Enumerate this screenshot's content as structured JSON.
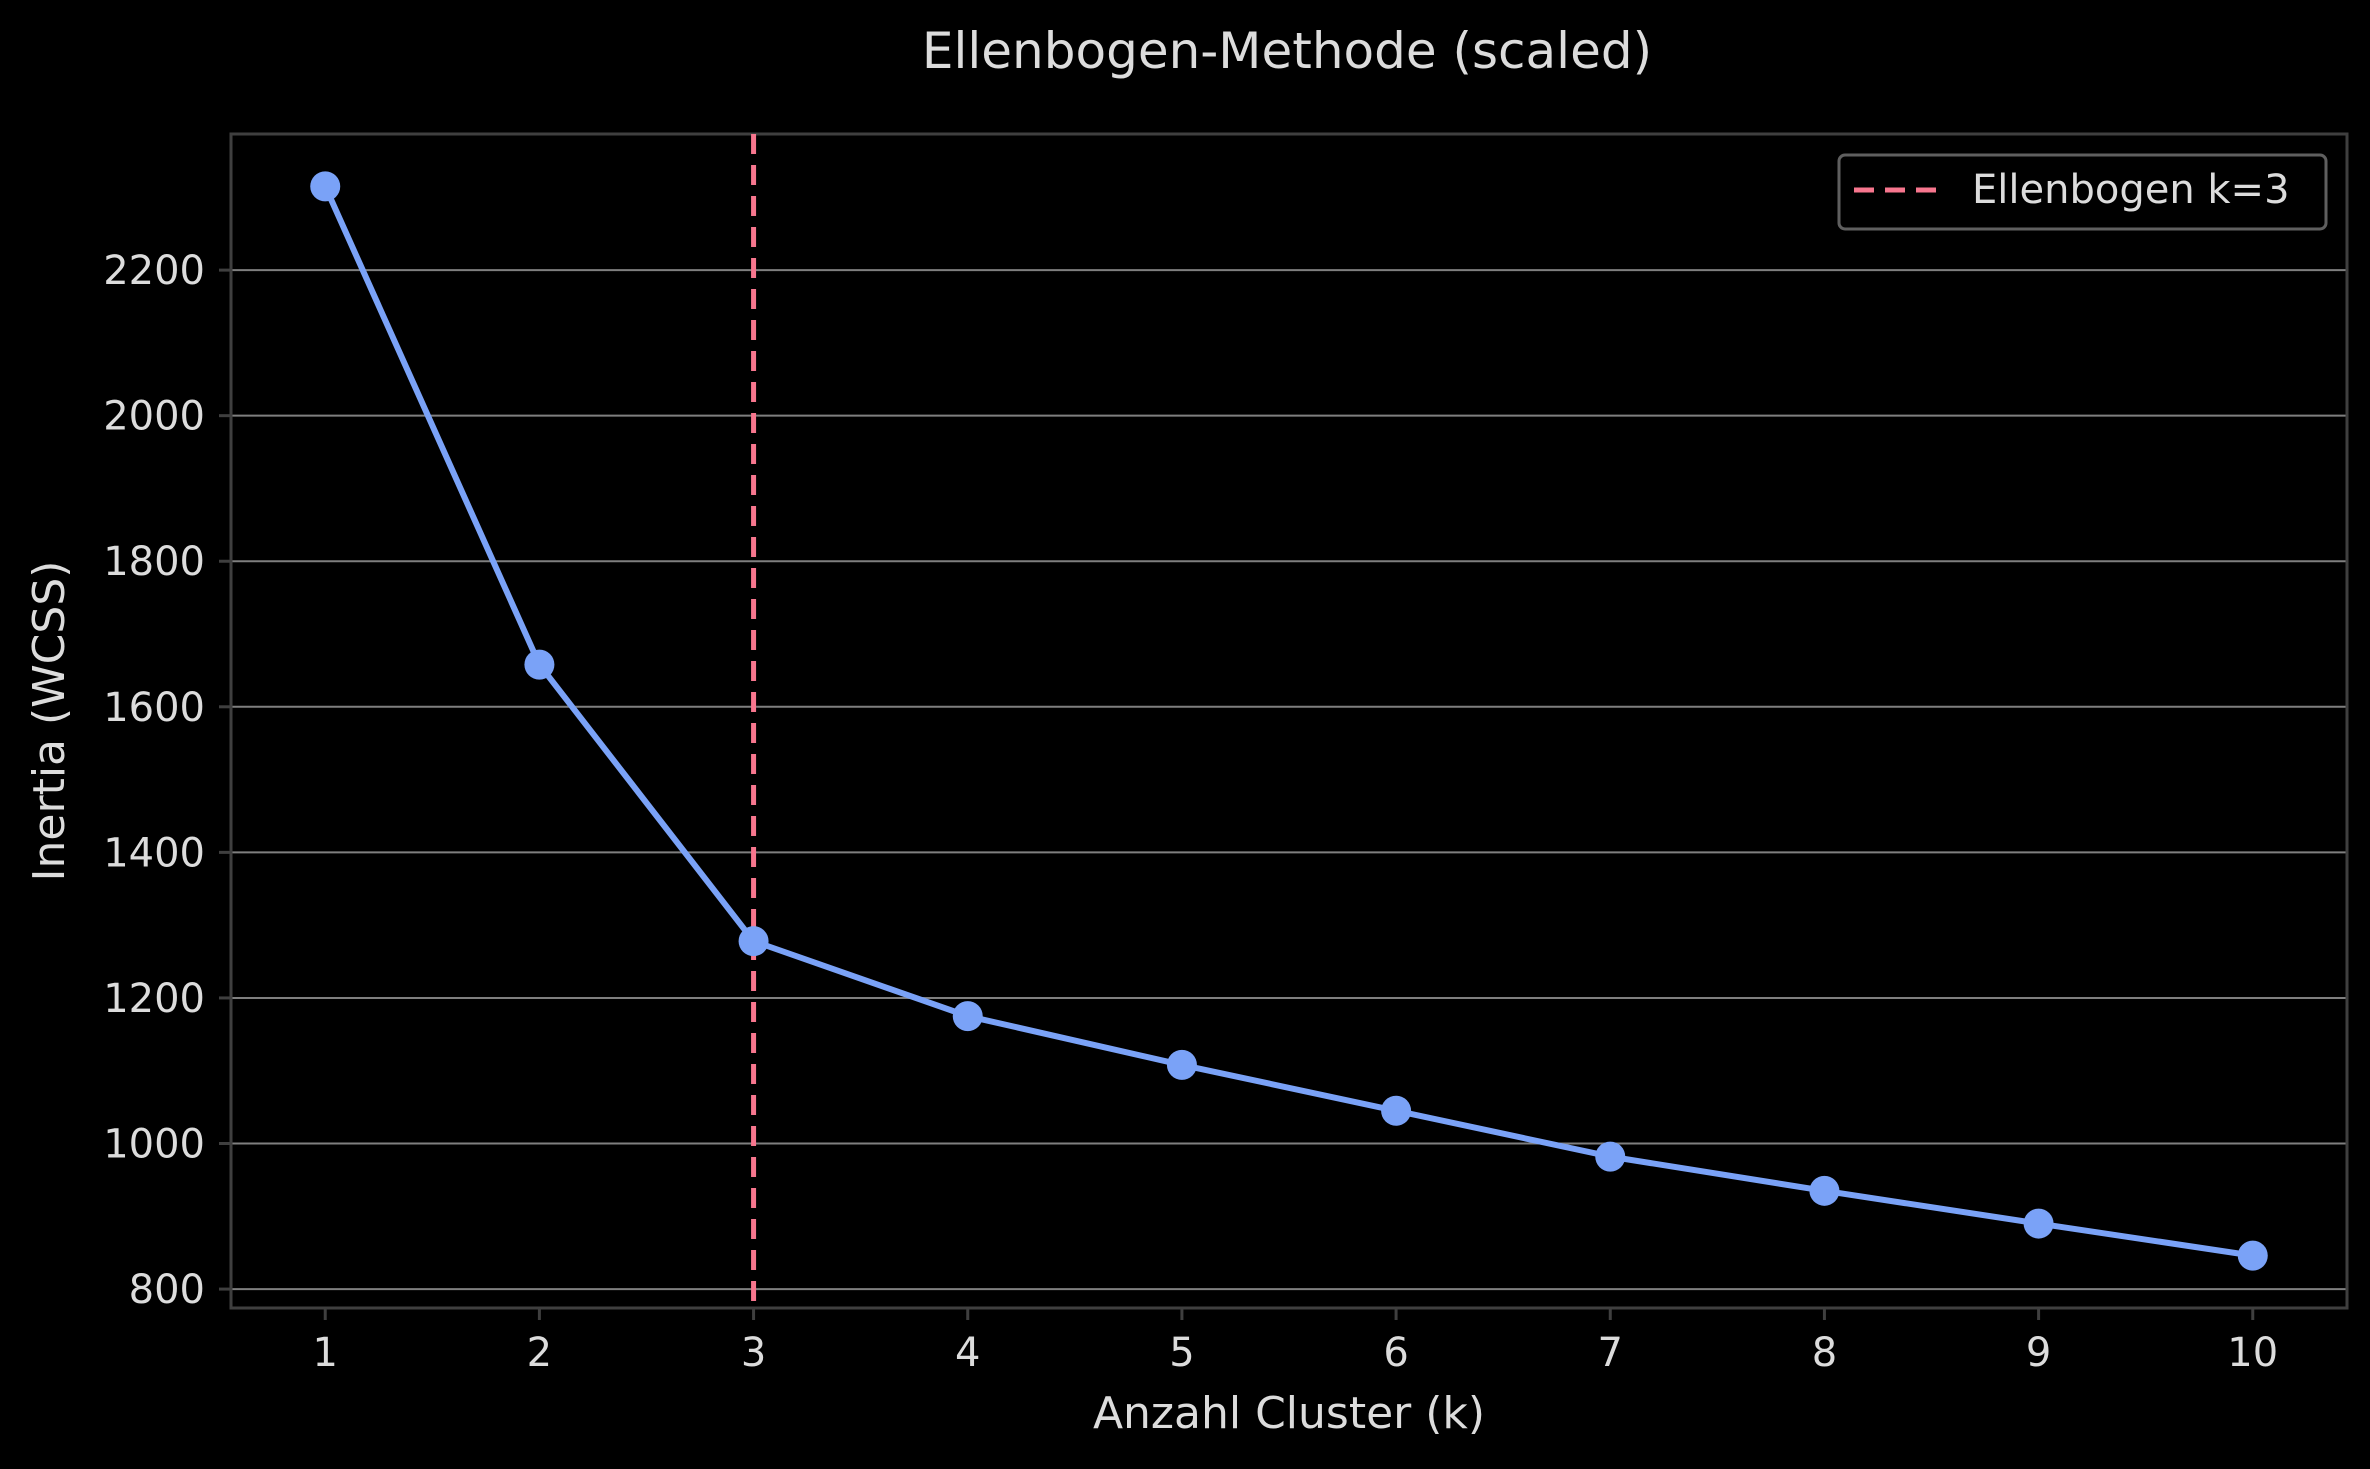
{
  "colors": {
    "background": "#000000",
    "text": "#dcdcdc",
    "line": "#7aa2f7",
    "marker": "#7aa2f7",
    "elbow": "#f7768e",
    "grid": "#7f7f7f",
    "frame": "#3f3f3f",
    "legend_border": "#5f5f5f"
  },
  "chart_data": {
    "type": "line",
    "title": "Ellenbogen-Methode (scaled)",
    "xlabel": "Anzahl Cluster (k)",
    "ylabel": "Inertia (WCSS)",
    "x": [
      1,
      2,
      3,
      4,
      5,
      6,
      7,
      8,
      9,
      10
    ],
    "series": [
      {
        "values": [
          2315,
          1658,
          1278,
          1175,
          1108,
          1045,
          982,
          935,
          890,
          846
        ]
      }
    ],
    "xlim": [
      0.56,
      10.44
    ],
    "ylim": [
      774,
      2387
    ],
    "xticks": [
      1,
      2,
      3,
      4,
      5,
      6,
      7,
      8,
      9,
      10
    ],
    "yticks": [
      800,
      1000,
      1200,
      1400,
      1600,
      1800,
      2000,
      2200
    ],
    "grid": "horizontal",
    "elbow": {
      "k": 3,
      "label": "Ellenbogen k=3"
    },
    "legend_position": "top-right"
  }
}
